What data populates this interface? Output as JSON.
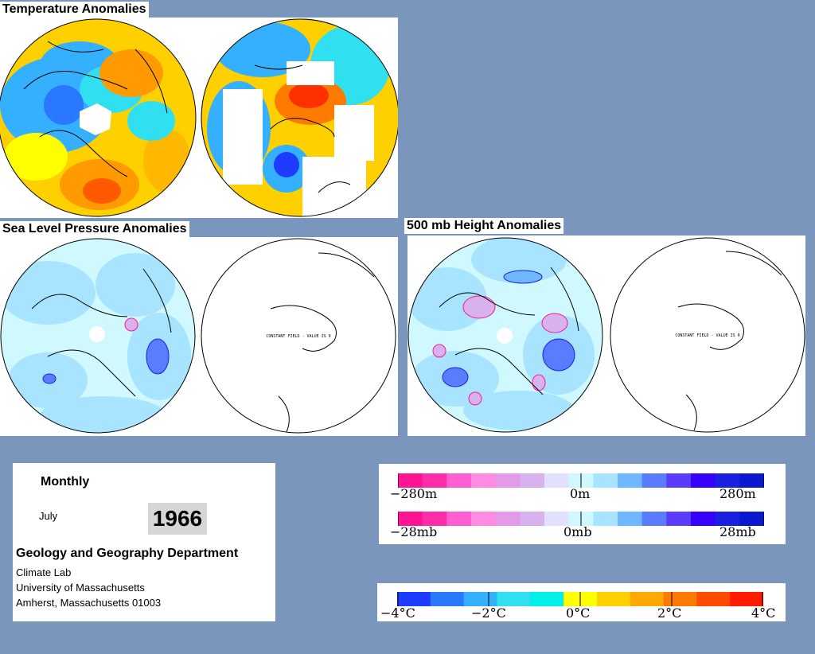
{
  "sections": {
    "temperature_title": "Temperature Anomalies",
    "slp_title": "Sea Level Pressure Anomalies",
    "height_title": "500 mb Height Anomalies"
  },
  "maps": {
    "constant_field_text": "CONSTANT FIELD - VALUE IS 0"
  },
  "info": {
    "period": "Monthly",
    "month": "July",
    "year": "1966",
    "department": "Geology and Geography Department",
    "lab": "Climate Lab",
    "university": "University of Massachusetts",
    "address": "Amherst, Massachusetts 01003"
  },
  "legend_height": {
    "left": "−280m",
    "center": "0m",
    "right": "280m"
  },
  "legend_pressure": {
    "left": "−28mb",
    "center": "0mb",
    "right": "28mb"
  },
  "legend_temp": {
    "labels": [
      "−4°C",
      "−2°C",
      "0°C",
      "2°C",
      "4°C"
    ]
  },
  "colors": {
    "background": "#7b96bc",
    "anomaly_scale": [
      "#ff1493",
      "#ff2ea8",
      "#ff5fd0",
      "#ff8ce0",
      "#e39ae8",
      "#d7b2ec",
      "#e0e0ff",
      "#cff8ff",
      "#a8e4ff",
      "#6fb8ff",
      "#5a7dff",
      "#5a3cff",
      "#3a00ff",
      "#1a20e0",
      "#0a18d0"
    ],
    "temp_scale": [
      "#1e3cff",
      "#2a78ff",
      "#34b0ff",
      "#30e0f0",
      "#00f0e8",
      "#ffff00",
      "#ffd000",
      "#ffa800",
      "#ff7a00",
      "#ff4a00",
      "#ff1a00"
    ]
  }
}
